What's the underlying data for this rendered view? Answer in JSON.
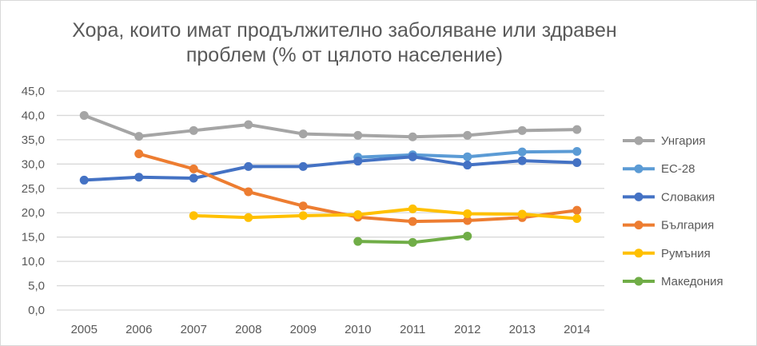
{
  "chart_data": {
    "type": "line",
    "title": "Хора, които имат продължително заболяване или здравен проблем (% от цялото население)",
    "title_lines": [
      "Хора, които имат продължително заболяване или здравен",
      "проблем (% от цялото население)"
    ],
    "xlabel": "",
    "ylabel": "",
    "x": [
      "2005",
      "2006",
      "2007",
      "2008",
      "2009",
      "2010",
      "2011",
      "2012",
      "2013",
      "2014"
    ],
    "ylim": [
      0,
      45
    ],
    "yticks": [
      "0,0",
      "5,0",
      "10,0",
      "15,0",
      "20,0",
      "25,0",
      "30,0",
      "35,0",
      "40,0",
      "45,0"
    ],
    "grid": true,
    "legend_position": "right",
    "series": [
      {
        "name": "Унгария",
        "color": "#a5a5a5",
        "values": [
          40.0,
          35.7,
          36.9,
          38.1,
          36.2,
          35.9,
          35.6,
          35.9,
          36.9,
          37.1
        ]
      },
      {
        "name": "ЕС-28",
        "color": "#5b9bd5",
        "values": [
          null,
          null,
          null,
          null,
          null,
          31.4,
          31.9,
          31.5,
          32.5,
          32.6
        ]
      },
      {
        "name": "Словакия",
        "color": "#4472c4",
        "values": [
          26.7,
          27.3,
          27.1,
          29.5,
          29.5,
          30.6,
          31.5,
          29.8,
          30.7,
          30.3
        ]
      },
      {
        "name": "България",
        "color": "#ed7d31",
        "values": [
          null,
          32.1,
          29.0,
          24.3,
          21.4,
          19.1,
          18.2,
          18.4,
          19.0,
          20.5
        ]
      },
      {
        "name": "Румъния",
        "color": "#ffc000",
        "values": [
          null,
          null,
          19.4,
          19.0,
          19.4,
          19.6,
          20.8,
          19.8,
          19.7,
          18.8
        ]
      },
      {
        "name": "Македония",
        "color": "#70ad47",
        "values": [
          null,
          null,
          null,
          null,
          null,
          14.1,
          13.9,
          15.2,
          null,
          null
        ]
      }
    ]
  }
}
